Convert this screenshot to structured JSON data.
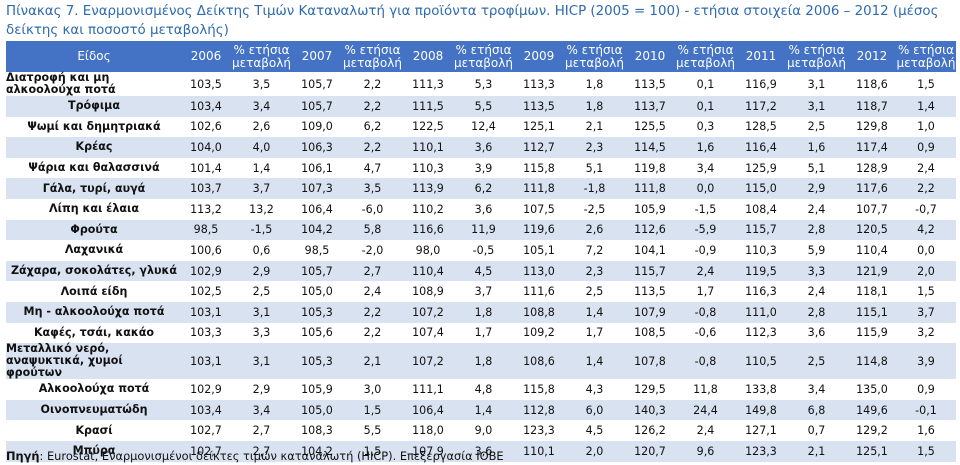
{
  "title": "Πίνακας 7. Εναρμονισμένος Δείκτης Τιμών Καταναλωτή για προϊόντα τροφίμων. HICP (2005 = 100) - ετήσια στοιχεία 2006 – 2012 (μέσος δείκτης και ποσοστό μεταβολής)",
  "headers": [
    "Είδος",
    "2006",
    "% ετήσια μεταβολή",
    "2007",
    "% ετήσια μεταβολή",
    "2008",
    "% ετήσια μεταβολή",
    "2009",
    "% ετήσια μεταβολή",
    "2010",
    "% ετήσια μεταβολή",
    "2011",
    "% ετήσια μεταβολή",
    "2012",
    "% ετήσια μεταβολή"
  ],
  "rows": [
    {
      "label": "Διατροφή και μη αλκοολούχα ποτά",
      "values": [
        "103,5",
        "3,5",
        "105,7",
        "2,2",
        "111,3",
        "5,3",
        "113,3",
        "1,8",
        "113,5",
        "0,1",
        "116,9",
        "3,1",
        "118,6",
        "1,5"
      ]
    },
    {
      "label": "Τρόφιμα",
      "values": [
        "103,4",
        "3,4",
        "105,7",
        "2,2",
        "111,5",
        "5,5",
        "113,5",
        "1,8",
        "113,7",
        "0,1",
        "117,2",
        "3,1",
        "118,7",
        "1,4"
      ]
    },
    {
      "label": "Ψωμί και δημητριακά",
      "values": [
        "102,6",
        "2,6",
        "109,0",
        "6,2",
        "122,5",
        "12,4",
        "125,1",
        "2,1",
        "125,5",
        "0,3",
        "128,5",
        "2,5",
        "129,8",
        "1,0"
      ]
    },
    {
      "label": "Κρέας",
      "values": [
        "104,0",
        "4,0",
        "106,3",
        "2,2",
        "110,1",
        "3,6",
        "112,7",
        "2,3",
        "114,5",
        "1,6",
        "116,4",
        "1,6",
        "117,4",
        "0,9"
      ]
    },
    {
      "label": "Ψάρια και θαλασσινά",
      "values": [
        "101,4",
        "1,4",
        "106,1",
        "4,7",
        "110,3",
        "3,9",
        "115,8",
        "5,1",
        "119,8",
        "3,4",
        "125,9",
        "5,1",
        "128,9",
        "2,4"
      ]
    },
    {
      "label": "Γάλα, τυρί, αυγά",
      "values": [
        "103,7",
        "3,7",
        "107,3",
        "3,5",
        "113,9",
        "6,2",
        "111,8",
        "-1,8",
        "111,8",
        "0,0",
        "115,0",
        "2,9",
        "117,6",
        "2,2"
      ]
    },
    {
      "label": "Λίπη και έλαια",
      "values": [
        "113,2",
        "13,2",
        "106,4",
        "-6,0",
        "110,2",
        "3,6",
        "107,5",
        "-2,5",
        "105,9",
        "-1,5",
        "108,4",
        "2,4",
        "107,7",
        "-0,7"
      ]
    },
    {
      "label": "Φρούτα",
      "values": [
        "98,5",
        "-1,5",
        "104,2",
        "5,8",
        "116,6",
        "11,9",
        "119,6",
        "2,6",
        "112,6",
        "-5,9",
        "115,7",
        "2,8",
        "120,5",
        "4,2"
      ]
    },
    {
      "label": "Λαχανικά",
      "values": [
        "100,6",
        "0,6",
        "98,5",
        "-2,0",
        "98,0",
        "-0,5",
        "105,1",
        "7,2",
        "104,1",
        "-0,9",
        "110,3",
        "5,9",
        "110,4",
        "0,0"
      ]
    },
    {
      "label": "Ζάχαρα, σοκολάτες, γλυκά",
      "values": [
        "102,9",
        "2,9",
        "105,7",
        "2,7",
        "110,4",
        "4,5",
        "113,0",
        "2,3",
        "115,7",
        "2,4",
        "119,5",
        "3,3",
        "121,9",
        "2,0"
      ]
    },
    {
      "label": "Λοιπά είδη",
      "values": [
        "102,5",
        "2,5",
        "105,0",
        "2,4",
        "108,9",
        "3,7",
        "111,6",
        "2,5",
        "113,5",
        "1,7",
        "116,3",
        "2,4",
        "118,1",
        "1,5"
      ]
    },
    {
      "label": "Μη - αλκοολούχα ποτά",
      "values": [
        "103,1",
        "3,1",
        "105,3",
        "2,2",
        "107,2",
        "1,8",
        "108,8",
        "1,4",
        "107,9",
        "-0,8",
        "111,0",
        "2,8",
        "115,1",
        "3,7"
      ]
    },
    {
      "label": "Καφές, τσάι, κακάο",
      "values": [
        "103,3",
        "3,3",
        "105,6",
        "2,2",
        "107,4",
        "1,7",
        "109,2",
        "1,7",
        "108,5",
        "-0,6",
        "112,3",
        "3,6",
        "115,9",
        "3,2"
      ]
    },
    {
      "label": "Μεταλλικό νερό, αναψυκτικά, χυμοί φρούτων",
      "values": [
        "103,1",
        "3,1",
        "105,3",
        "2,1",
        "107,2",
        "1,8",
        "108,6",
        "1,4",
        "107,8",
        "-0,8",
        "110,5",
        "2,5",
        "114,8",
        "3,9"
      ]
    },
    {
      "label": "Αλκοολούχα ποτά",
      "values": [
        "102,9",
        "2,9",
        "105,9",
        "3,0",
        "111,1",
        "4,8",
        "115,8",
        "4,3",
        "129,5",
        "11,8",
        "133,8",
        "3,4",
        "135,0",
        "0,9"
      ]
    },
    {
      "label": "Οινοπνευματώδη",
      "values": [
        "103,4",
        "3,4",
        "105,0",
        "1,5",
        "106,4",
        "1,4",
        "112,8",
        "6,0",
        "140,3",
        "24,4",
        "149,8",
        "6,8",
        "149,6",
        "-0,1"
      ]
    },
    {
      "label": "Κρασί",
      "values": [
        "102,7",
        "2,7",
        "108,3",
        "5,5",
        "118,0",
        "9,0",
        "123,3",
        "4,5",
        "126,2",
        "2,4",
        "127,1",
        "0,7",
        "129,2",
        "1,6"
      ]
    },
    {
      "label": "Μπύρα",
      "values": [
        "102,7",
        "2,7",
        "104,2",
        "1,5",
        "107,9",
        "3,6",
        "110,1",
        "2,0",
        "120,7",
        "9,6",
        "123,3",
        "2,1",
        "125,1",
        "1,5"
      ]
    }
  ],
  "source": {
    "label": "Πηγή",
    "text": ": Eurostat, Εναρμονισμένοι δείκτες τιμών καταναλωτή (HICP). Επεξεργασία ΙΟΒΕ"
  },
  "colors": {
    "header_bg": "#4472c4",
    "stripe": "#d9e2f1",
    "title": "#2e6aaf"
  }
}
